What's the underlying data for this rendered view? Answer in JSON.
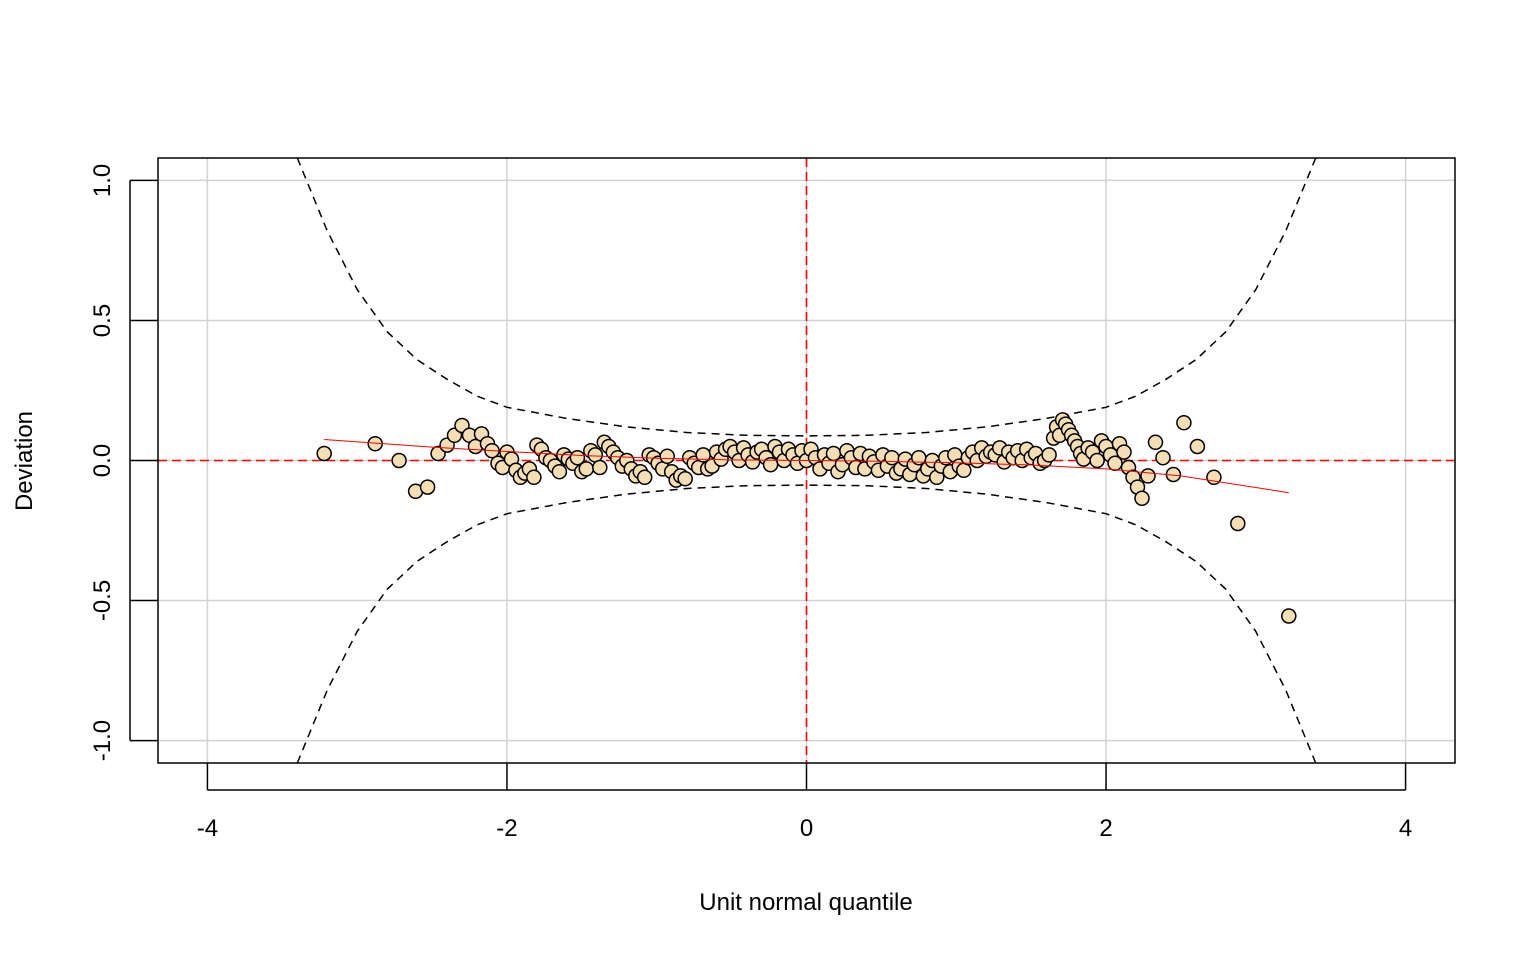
{
  "chart_data": {
    "type": "scatter",
    "title": "",
    "xlabel": "Unit normal quantile",
    "ylabel": "Deviation",
    "xlim": [
      -4.33,
      4.33
    ],
    "ylim": [
      -1.08,
      1.08
    ],
    "x_ticks": [
      -4,
      -2,
      0,
      2,
      4
    ],
    "x_tick_labels": [
      "-4",
      "-2",
      "0",
      "2",
      "4"
    ],
    "y_ticks": [
      -1.0,
      -0.5,
      0.0,
      0.5,
      1.0
    ],
    "y_tick_labels": [
      "-1.0",
      "-0.5",
      "0.0",
      "0.5",
      "1.0"
    ],
    "grid": true,
    "colors": {
      "point_fill": "#f5deb3",
      "point_stroke": "#000000",
      "reference_line": "#ff0000",
      "trend_line": "#ff0000",
      "envelope": "#000000",
      "grid": "#d3d3d3"
    },
    "reference_lines": {
      "x": 0,
      "y": 0
    },
    "envelope": {
      "x": [
        -3.4,
        -3.2,
        -3.0,
        -2.8,
        -2.6,
        -2.4,
        -2.2,
        -2.0,
        -1.6,
        -1.2,
        -0.8,
        -0.4,
        0.0,
        0.4,
        0.8,
        1.2,
        1.6,
        2.0,
        2.2,
        2.4,
        2.6,
        2.8,
        3.0,
        3.2,
        3.4
      ],
      "upper": [
        1.08,
        0.82,
        0.61,
        0.46,
        0.36,
        0.29,
        0.23,
        0.19,
        0.15,
        0.12,
        0.1,
        0.09,
        0.088,
        0.09,
        0.1,
        0.12,
        0.15,
        0.19,
        0.23,
        0.29,
        0.36,
        0.46,
        0.61,
        0.82,
        1.08
      ],
      "lower": [
        -1.08,
        -0.82,
        -0.61,
        -0.46,
        -0.36,
        -0.29,
        -0.23,
        -0.19,
        -0.15,
        -0.12,
        -0.1,
        -0.09,
        -0.088,
        -0.09,
        -0.1,
        -0.12,
        -0.15,
        -0.19,
        -0.23,
        -0.29,
        -0.36,
        -0.46,
        -0.61,
        -0.82,
        -1.08
      ]
    },
    "trend": {
      "x": [
        -3.22,
        -2.5,
        -2.0,
        -1.5,
        -1.0,
        -0.5,
        0.0,
        0.5,
        1.0,
        1.5,
        2.0,
        2.5,
        3.22
      ],
      "y": [
        0.075,
        0.048,
        0.032,
        0.018,
        0.008,
        0.002,
        0.0,
        -0.003,
        -0.008,
        -0.016,
        -0.03,
        -0.055,
        -0.115
      ]
    },
    "series": [
      {
        "points": [
          [
            -3.22,
            0.025
          ],
          [
            -2.88,
            0.06
          ],
          [
            -2.72,
            0.0
          ],
          [
            -2.61,
            -0.11
          ],
          [
            -2.53,
            -0.095
          ],
          [
            -2.46,
            0.025
          ],
          [
            -2.4,
            0.055
          ],
          [
            -2.35,
            0.09
          ],
          [
            -2.3,
            0.125
          ],
          [
            -2.25,
            0.09
          ],
          [
            -2.21,
            0.05
          ],
          [
            -2.17,
            0.095
          ],
          [
            -2.13,
            0.06
          ],
          [
            -2.1,
            0.035
          ],
          [
            -2.06,
            -0.01
          ],
          [
            -2.03,
            -0.025
          ],
          [
            -2.0,
            0.03
          ],
          [
            -1.97,
            0.005
          ],
          [
            -1.94,
            -0.035
          ],
          [
            -1.91,
            -0.06
          ],
          [
            -1.88,
            -0.045
          ],
          [
            -1.85,
            -0.03
          ],
          [
            -1.82,
            -0.06
          ],
          [
            -1.8,
            0.055
          ],
          [
            -1.77,
            0.04
          ],
          [
            -1.74,
            0.01
          ],
          [
            -1.71,
            0.0
          ],
          [
            -1.68,
            -0.02
          ],
          [
            -1.65,
            -0.04
          ],
          [
            -1.62,
            0.02
          ],
          [
            -1.59,
            0.005
          ],
          [
            -1.56,
            -0.01
          ],
          [
            -1.53,
            0.01
          ],
          [
            -1.5,
            -0.04
          ],
          [
            -1.47,
            -0.03
          ],
          [
            -1.44,
            0.035
          ],
          [
            -1.41,
            0.02
          ],
          [
            -1.38,
            -0.025
          ],
          [
            -1.35,
            0.065
          ],
          [
            -1.32,
            0.05
          ],
          [
            -1.29,
            0.03
          ],
          [
            -1.26,
            0.01
          ],
          [
            -1.23,
            -0.02
          ],
          [
            -1.2,
            0.0
          ],
          [
            -1.17,
            -0.03
          ],
          [
            -1.14,
            -0.055
          ],
          [
            -1.11,
            -0.04
          ],
          [
            -1.08,
            -0.06
          ],
          [
            -1.05,
            0.02
          ],
          [
            -1.02,
            0.01
          ],
          [
            -0.99,
            -0.01
          ],
          [
            -0.96,
            -0.03
          ],
          [
            -0.93,
            0.015
          ],
          [
            -0.9,
            -0.04
          ],
          [
            -0.87,
            -0.07
          ],
          [
            -0.84,
            -0.055
          ],
          [
            -0.81,
            -0.065
          ],
          [
            -0.78,
            0.01
          ],
          [
            -0.75,
            -0.01
          ],
          [
            -0.72,
            -0.025
          ],
          [
            -0.69,
            0.02
          ],
          [
            -0.66,
            -0.03
          ],
          [
            -0.63,
            -0.02
          ],
          [
            -0.6,
            0.03
          ],
          [
            -0.57,
            0.005
          ],
          [
            -0.54,
            0.04
          ],
          [
            -0.51,
            0.05
          ],
          [
            -0.48,
            0.03
          ],
          [
            -0.45,
            0.0
          ],
          [
            -0.42,
            0.045
          ],
          [
            -0.39,
            0.02
          ],
          [
            -0.36,
            -0.005
          ],
          [
            -0.33,
            0.03
          ],
          [
            -0.3,
            0.04
          ],
          [
            -0.27,
            0.01
          ],
          [
            -0.24,
            -0.015
          ],
          [
            -0.21,
            0.05
          ],
          [
            -0.18,
            0.03
          ],
          [
            -0.15,
            0.0
          ],
          [
            -0.12,
            0.04
          ],
          [
            -0.09,
            0.02
          ],
          [
            -0.06,
            -0.01
          ],
          [
            -0.03,
            0.035
          ],
          [
            0.0,
            0.0
          ],
          [
            0.03,
            0.04
          ],
          [
            0.06,
            0.01
          ],
          [
            0.09,
            -0.03
          ],
          [
            0.12,
            0.02
          ],
          [
            0.15,
            -0.01
          ],
          [
            0.18,
            0.025
          ],
          [
            0.21,
            -0.04
          ],
          [
            0.24,
            -0.015
          ],
          [
            0.27,
            0.035
          ],
          [
            0.3,
            0.01
          ],
          [
            0.33,
            -0.025
          ],
          [
            0.36,
            0.025
          ],
          [
            0.39,
            -0.03
          ],
          [
            0.42,
            0.015
          ],
          [
            0.45,
            -0.005
          ],
          [
            0.48,
            -0.035
          ],
          [
            0.51,
            0.02
          ],
          [
            0.54,
            -0.02
          ],
          [
            0.57,
            0.01
          ],
          [
            0.6,
            -0.045
          ],
          [
            0.63,
            -0.03
          ],
          [
            0.66,
            0.005
          ],
          [
            0.69,
            -0.05
          ],
          [
            0.72,
            -0.015
          ],
          [
            0.75,
            0.01
          ],
          [
            0.78,
            -0.055
          ],
          [
            0.81,
            -0.03
          ],
          [
            0.84,
            0.0
          ],
          [
            0.87,
            -0.06
          ],
          [
            0.9,
            -0.02
          ],
          [
            0.93,
            0.01
          ],
          [
            0.96,
            -0.04
          ],
          [
            0.99,
            0.02
          ],
          [
            1.02,
            -0.02
          ],
          [
            1.05,
            -0.035
          ],
          [
            1.08,
            0.01
          ],
          [
            1.11,
            0.03
          ],
          [
            1.14,
            0.0
          ],
          [
            1.17,
            0.045
          ],
          [
            1.2,
            0.015
          ],
          [
            1.23,
            0.03
          ],
          [
            1.26,
            0.02
          ],
          [
            1.29,
            0.045
          ],
          [
            1.32,
            -0.005
          ],
          [
            1.35,
            0.03
          ],
          [
            1.38,
            0.01
          ],
          [
            1.41,
            0.035
          ],
          [
            1.44,
            0.0
          ],
          [
            1.47,
            0.04
          ],
          [
            1.5,
            0.01
          ],
          [
            1.53,
            0.025
          ],
          [
            1.56,
            -0.01
          ],
          [
            1.59,
            0.0
          ],
          [
            1.62,
            0.02
          ],
          [
            1.65,
            0.08
          ],
          [
            1.67,
            0.12
          ],
          [
            1.69,
            0.09
          ],
          [
            1.71,
            0.145
          ],
          [
            1.73,
            0.13
          ],
          [
            1.75,
            0.11
          ],
          [
            1.77,
            0.09
          ],
          [
            1.79,
            0.07
          ],
          [
            1.81,
            0.05
          ],
          [
            1.83,
            0.025
          ],
          [
            1.85,
            0.005
          ],
          [
            1.88,
            0.045
          ],
          [
            1.91,
            0.03
          ],
          [
            1.94,
            0.0
          ],
          [
            1.97,
            0.07
          ],
          [
            2.0,
            0.05
          ],
          [
            2.03,
            0.02
          ],
          [
            2.06,
            -0.01
          ],
          [
            2.09,
            0.06
          ],
          [
            2.12,
            0.03
          ],
          [
            2.15,
            -0.025
          ],
          [
            2.18,
            -0.06
          ],
          [
            2.21,
            -0.095
          ],
          [
            2.24,
            -0.135
          ],
          [
            2.28,
            -0.055
          ],
          [
            2.33,
            0.065
          ],
          [
            2.38,
            0.01
          ],
          [
            2.45,
            -0.05
          ],
          [
            2.52,
            0.135
          ],
          [
            2.61,
            0.05
          ],
          [
            2.72,
            -0.06
          ],
          [
            2.88,
            -0.225
          ],
          [
            3.22,
            -0.555
          ]
        ]
      }
    ]
  }
}
